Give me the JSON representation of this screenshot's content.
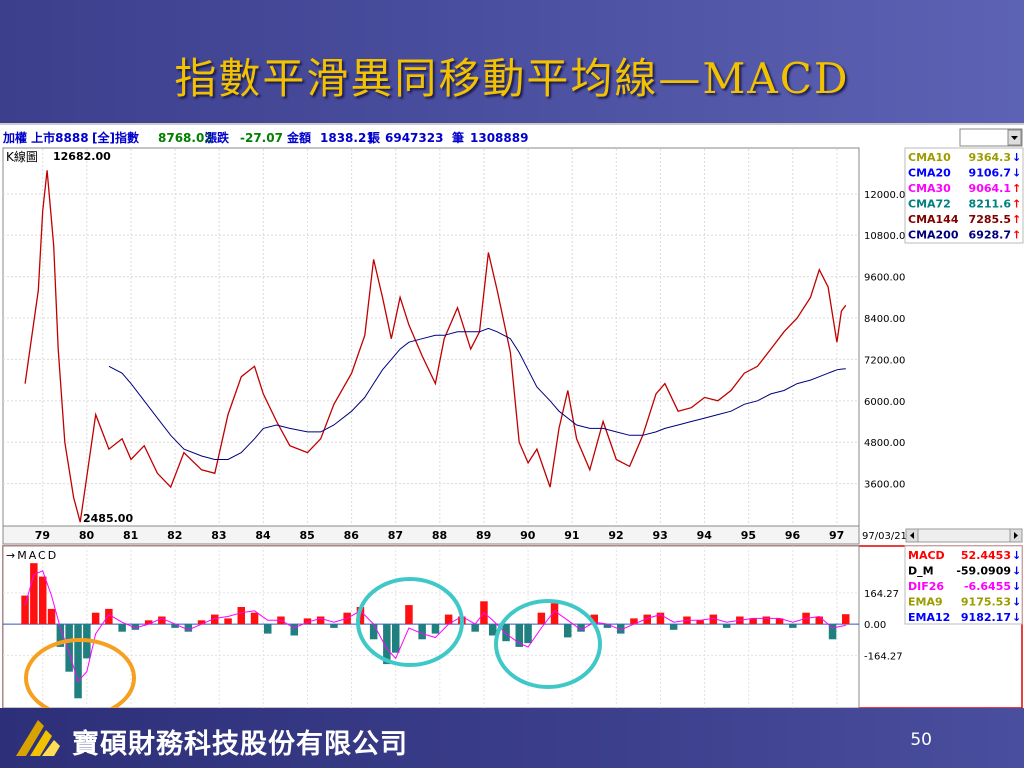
{
  "slide": {
    "title": "指數平滑異同移動平均線—MACD",
    "page_number": "50",
    "company": "寶碩財務科技股份有限公司"
  },
  "header": {
    "market": "加權 上市8888",
    "group": "[全]指數",
    "index_value": "8768.02",
    "change_label": "漲跌",
    "change_value": "-27.07",
    "amount_label": "金額",
    "amount_value": "1838.21",
    "volume_label": "張",
    "volume_value": "6947323",
    "count_label": "筆",
    "count_value": "1308889"
  },
  "price_panel": {
    "panel_label": "K線圖",
    "high_label": "12682.00",
    "low_label": "2485.00",
    "date_label": "97/03/21",
    "legend": [
      {
        "name": "CMA10",
        "value": "9364.3",
        "arrow": "↓",
        "color": "#9c9c00",
        "arrow_color": "#0000ff"
      },
      {
        "name": "CMA20",
        "value": "9106.7",
        "arrow": "↓",
        "color": "#0000ff",
        "arrow_color": "#0000ff"
      },
      {
        "name": "CMA30",
        "value": "9064.1",
        "arrow": "↑",
        "color": "#ff00ff",
        "arrow_color": "#ff0000"
      },
      {
        "name": "CMA72",
        "value": "8211.6",
        "arrow": "↑",
        "color": "#008080",
        "arrow_color": "#ff0000"
      },
      {
        "name": "CMA144",
        "value": "7285.5",
        "arrow": "↑",
        "color": "#800000",
        "arrow_color": "#ff0000"
      },
      {
        "name": "CMA200",
        "value": "6928.7",
        "arrow": "↑",
        "color": "#000080",
        "arrow_color": "#ff0000"
      }
    ]
  },
  "macd_panel": {
    "panel_label": "→MACD",
    "legend": [
      {
        "name": "MACD",
        "value": "52.4453",
        "arrow": "↓",
        "color": "#ff0000",
        "arrow_color": "#0000ff"
      },
      {
        "name": "D_M",
        "value": "-59.0909",
        "arrow": "↓",
        "color": "#000000",
        "arrow_color": "#0000ff"
      },
      {
        "name": "DIF26",
        "value": "-6.6455",
        "arrow": "↓",
        "color": "#ff00ff",
        "arrow_color": "#0000ff"
      },
      {
        "name": "EMA9",
        "value": "9175.53",
        "arrow": "↓",
        "color": "#9c9c00",
        "arrow_color": "#0000ff"
      },
      {
        "name": "EMA12",
        "value": "9182.17",
        "arrow": "↓",
        "color": "#0000ff",
        "arrow_color": "#0000ff"
      }
    ]
  },
  "chart_data": [
    {
      "type": "line",
      "title": "",
      "x": [
        78.6,
        78.9,
        79.0,
        79.1,
        79.25,
        79.35,
        79.5,
        79.7,
        79.85,
        80.0,
        80.2,
        80.5,
        80.8,
        81.0,
        81.3,
        81.6,
        81.9,
        82.2,
        82.6,
        82.9,
        83.2,
        83.5,
        83.8,
        84.0,
        84.3,
        84.6,
        85.0,
        85.3,
        85.6,
        86.0,
        86.3,
        86.5,
        86.7,
        86.9,
        87.1,
        87.3,
        87.6,
        87.9,
        88.1,
        88.4,
        88.7,
        88.9,
        89.1,
        89.3,
        89.6,
        89.8,
        90.0,
        90.2,
        90.5,
        90.7,
        90.9,
        91.1,
        91.4,
        91.7,
        92.0,
        92.3,
        92.6,
        92.9,
        93.1,
        93.4,
        93.7,
        94.0,
        94.3,
        94.6,
        94.9,
        95.2,
        95.5,
        95.8,
        96.1,
        96.4,
        96.6,
        96.8,
        96.9,
        97.0,
        97.1,
        97.2
      ],
      "series": [
        {
          "values": [
            6500,
            9200,
            11500,
            12682,
            10500,
            7500,
            4800,
            3200,
            2485,
            3800,
            5600,
            4600,
            4900,
            4300,
            4700,
            3900,
            3500,
            4500,
            4000,
            3900,
            5600,
            6700,
            7000,
            6200,
            5400,
            4700,
            4500,
            4900,
            5900,
            6800,
            7900,
            10100,
            9000,
            7800,
            9000,
            8200,
            7300,
            6500,
            7800,
            8700,
            7500,
            8000,
            10300,
            9200,
            7400,
            4800,
            4200,
            4600,
            3500,
            5200,
            6300,
            4900,
            4000,
            5400,
            4300,
            4100,
            5000,
            6200,
            6500,
            5700,
            5800,
            6100,
            6000,
            6300,
            6800,
            7000,
            7500,
            8000,
            8400,
            9000,
            9800,
            9300,
            8500,
            7700,
            8600,
            8768
          ]
        },
        {
          "name": "CMA200",
          "values": [
            null,
            null,
            null,
            null,
            null,
            null,
            null,
            null,
            null,
            null,
            null,
            7000,
            6800,
            6500,
            6000,
            5500,
            5000,
            4600,
            4400,
            4300,
            4300,
            4500,
            4900,
            5200,
            5300,
            5200,
            5100,
            5100,
            5300,
            5700,
            6100,
            6500,
            6900,
            7200,
            7500,
            7700,
            7800,
            7900,
            7900,
            8000,
            8000,
            8000,
            8100,
            8000,
            7800,
            7400,
            6900,
            6400,
            6000,
            5700,
            5500,
            5300,
            5200,
            5200,
            5100,
            5000,
            5000,
            5100,
            5200,
            5300,
            5400,
            5500,
            5600,
            5700,
            5900,
            6000,
            6200,
            6300,
            6500,
            6600,
            6700,
            6800,
            6850,
            6900,
            6920,
            6928.7
          ]
        }
      ],
      "ylim": [
        2400,
        13300
      ],
      "yticks": [
        "12000.00",
        "10800.00",
        "9600.00",
        "8400.00",
        "7200.00",
        "6000.00",
        "4800.00",
        "3600.00"
      ],
      "ytick_values": [
        12000,
        10800,
        9600,
        8400,
        7200,
        6000,
        4800,
        3600
      ],
      "xticks": [
        "79",
        "80",
        "81",
        "82",
        "83",
        "84",
        "85",
        "86",
        "87",
        "88",
        "89",
        "90",
        "91",
        "92",
        "93",
        "94",
        "95",
        "96",
        "97"
      ],
      "xtick_values": [
        79,
        80,
        81,
        82,
        83,
        84,
        85,
        86,
        87,
        88,
        89,
        90,
        91,
        92,
        93,
        94,
        95,
        96,
        97
      ],
      "grid": true
    },
    {
      "type": "bar",
      "title": "",
      "x": [
        78.6,
        78.8,
        79.0,
        79.2,
        79.4,
        79.6,
        79.8,
        80.0,
        80.2,
        80.5,
        80.8,
        81.1,
        81.4,
        81.7,
        82.0,
        82.3,
        82.6,
        82.9,
        83.2,
        83.5,
        83.8,
        84.1,
        84.4,
        84.7,
        85.0,
        85.3,
        85.6,
        85.9,
        86.2,
        86.5,
        86.8,
        87.0,
        87.3,
        87.6,
        87.9,
        88.2,
        88.5,
        88.8,
        89.0,
        89.2,
        89.5,
        89.8,
        90.0,
        90.3,
        90.6,
        90.9,
        91.2,
        91.5,
        91.8,
        92.1,
        92.4,
        92.7,
        93.0,
        93.3,
        93.6,
        93.9,
        94.2,
        94.5,
        94.8,
        95.1,
        95.4,
        95.7,
        96.0,
        96.3,
        96.6,
        96.9,
        97.2
      ],
      "series": [
        {
          "name": "MACD",
          "values": [
            150,
            320,
            250,
            80,
            -120,
            -250,
            -390,
            -180,
            60,
            80,
            -40,
            -30,
            20,
            40,
            -20,
            -40,
            20,
            50,
            30,
            90,
            60,
            -50,
            40,
            -60,
            30,
            40,
            -20,
            60,
            90,
            -80,
            -210,
            -150,
            100,
            -80,
            -50,
            50,
            40,
            -40,
            120,
            -60,
            -90,
            -120,
            -100,
            60,
            110,
            -70,
            -40,
            50,
            -20,
            -50,
            30,
            50,
            60,
            -30,
            40,
            20,
            50,
            -20,
            40,
            30,
            40,
            30,
            -20,
            60,
            40,
            -80,
            52
          ]
        },
        {
          "name": "DIF26",
          "values": [
            100,
            260,
            280,
            150,
            -20,
            -150,
            -300,
            -250,
            -50,
            50,
            10,
            -20,
            0,
            30,
            0,
            -30,
            0,
            30,
            40,
            60,
            70,
            20,
            20,
            -20,
            10,
            30,
            10,
            30,
            70,
            0,
            -130,
            -180,
            -20,
            -50,
            -70,
            0,
            40,
            0,
            60,
            20,
            -50,
            -100,
            -120,
            -20,
            70,
            20,
            -30,
            10,
            0,
            -30,
            0,
            30,
            50,
            10,
            20,
            20,
            30,
            10,
            20,
            30,
            30,
            30,
            10,
            30,
            40,
            -20,
            -6.6
          ]
        }
      ],
      "ylim": [
        -430,
        400
      ],
      "yticks": [
        "164.27",
        "0.00",
        "-164.27"
      ],
      "ytick_values": [
        164.27,
        0,
        -164.27
      ],
      "xlim": [
        78.1,
        97.5
      ]
    }
  ],
  "price_xlim": [
    78.1,
    97.5
  ]
}
